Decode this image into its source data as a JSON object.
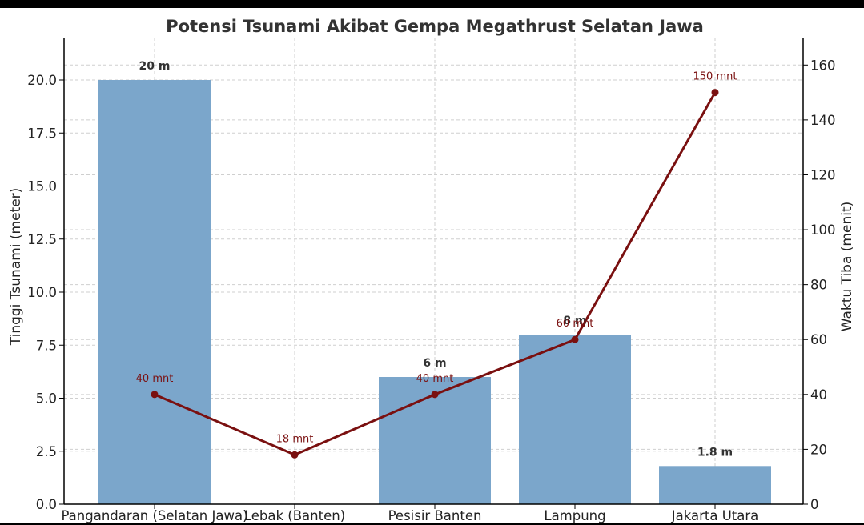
{
  "chart_data": {
    "type": "bar",
    "title": "Potensi Tsunami Akibat Gempa Megathrust Selatan Jawa",
    "xlabel": "",
    "ylabel": "Tinggi Tsunami (meter)",
    "y2label": "Waktu Tiba (menit)",
    "categories": [
      "Pangandaran (Selatan Jawa)",
      "Lebak (Banten)",
      "Pesisir Banten",
      "Lampung",
      "Jakarta Utara"
    ],
    "series": [
      {
        "name": "",
        "type": "bar",
        "axis": "left",
        "values": [
          20,
          0,
          6,
          8,
          1.8
        ],
        "labels": [
          "20 m",
          "",
          "6 m",
          "8 m",
          "1.8 m"
        ],
        "color": "#7ba6cb"
      },
      {
        "name": "",
        "type": "line",
        "axis": "right",
        "values": [
          40,
          18,
          40,
          60,
          150
        ],
        "labels": [
          "40 mnt",
          "18 mnt",
          "40 mnt",
          "60 mnt",
          "150 mnt"
        ],
        "color": "#7a1010"
      }
    ],
    "ylim": [
      0,
      22
    ],
    "y2lim": [
      0,
      170
    ],
    "yticks": [
      "0.0",
      "2.5",
      "5.0",
      "7.5",
      "10.0",
      "12.5",
      "15.0",
      "17.5",
      "20.0"
    ],
    "y2ticks": [
      "0",
      "20",
      "40",
      "60",
      "80",
      "100",
      "120",
      "140",
      "160"
    ],
    "grid": true,
    "legend": "none"
  }
}
